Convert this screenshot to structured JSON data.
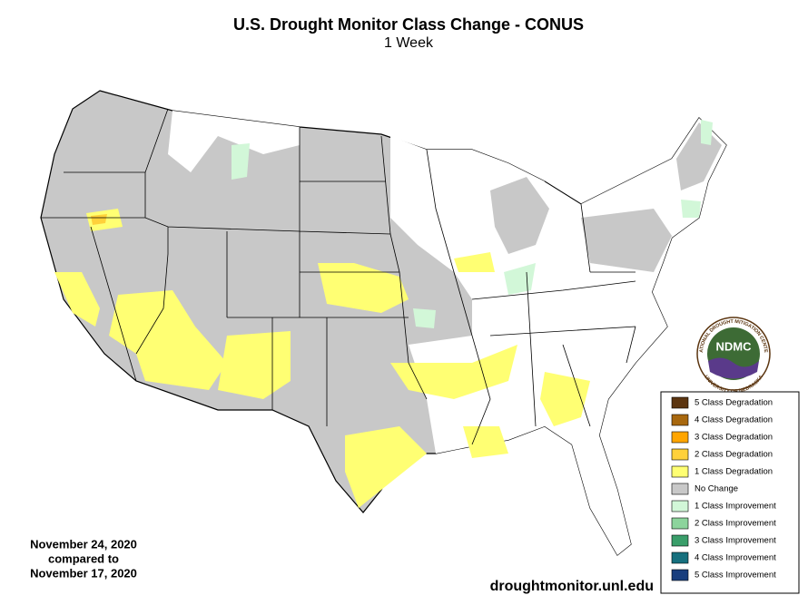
{
  "header": {
    "title": "U.S. Drought Monitor Class Change - CONUS",
    "subtitle": "1 Week"
  },
  "legend": {
    "items": [
      {
        "label": "5 Class Degradation",
        "color": "#5b3510"
      },
      {
        "label": "4 Class Degradation",
        "color": "#a8680f"
      },
      {
        "label": "3 Class Degradation",
        "color": "#ffa500"
      },
      {
        "label": "2 Class Degradation",
        "color": "#ffd13a"
      },
      {
        "label": "1 Class Degradation",
        "color": "#ffff73"
      },
      {
        "label": "No Change",
        "color": "#c8c8c8"
      },
      {
        "label": "1 Class Improvement",
        "color": "#d2f7d8"
      },
      {
        "label": "2 Class Improvement",
        "color": "#8cd49c"
      },
      {
        "label": "3 Class Improvement",
        "color": "#3a9e6a"
      },
      {
        "label": "4 Class Improvement",
        "color": "#17707e"
      },
      {
        "label": "5 Class Improvement",
        "color": "#183e7e"
      }
    ]
  },
  "dates": {
    "lines": [
      "November 24, 2020",
      "compared to",
      "November 17, 2020"
    ]
  },
  "source": "droughtmonitor.unl.edu",
  "logo": {
    "abbr": "NDMC",
    "ring_top": "NATIONAL DROUGHT MITIGATION CENTER",
    "ring_bottom": "UNIVERSITY OF NEBRASKA"
  }
}
